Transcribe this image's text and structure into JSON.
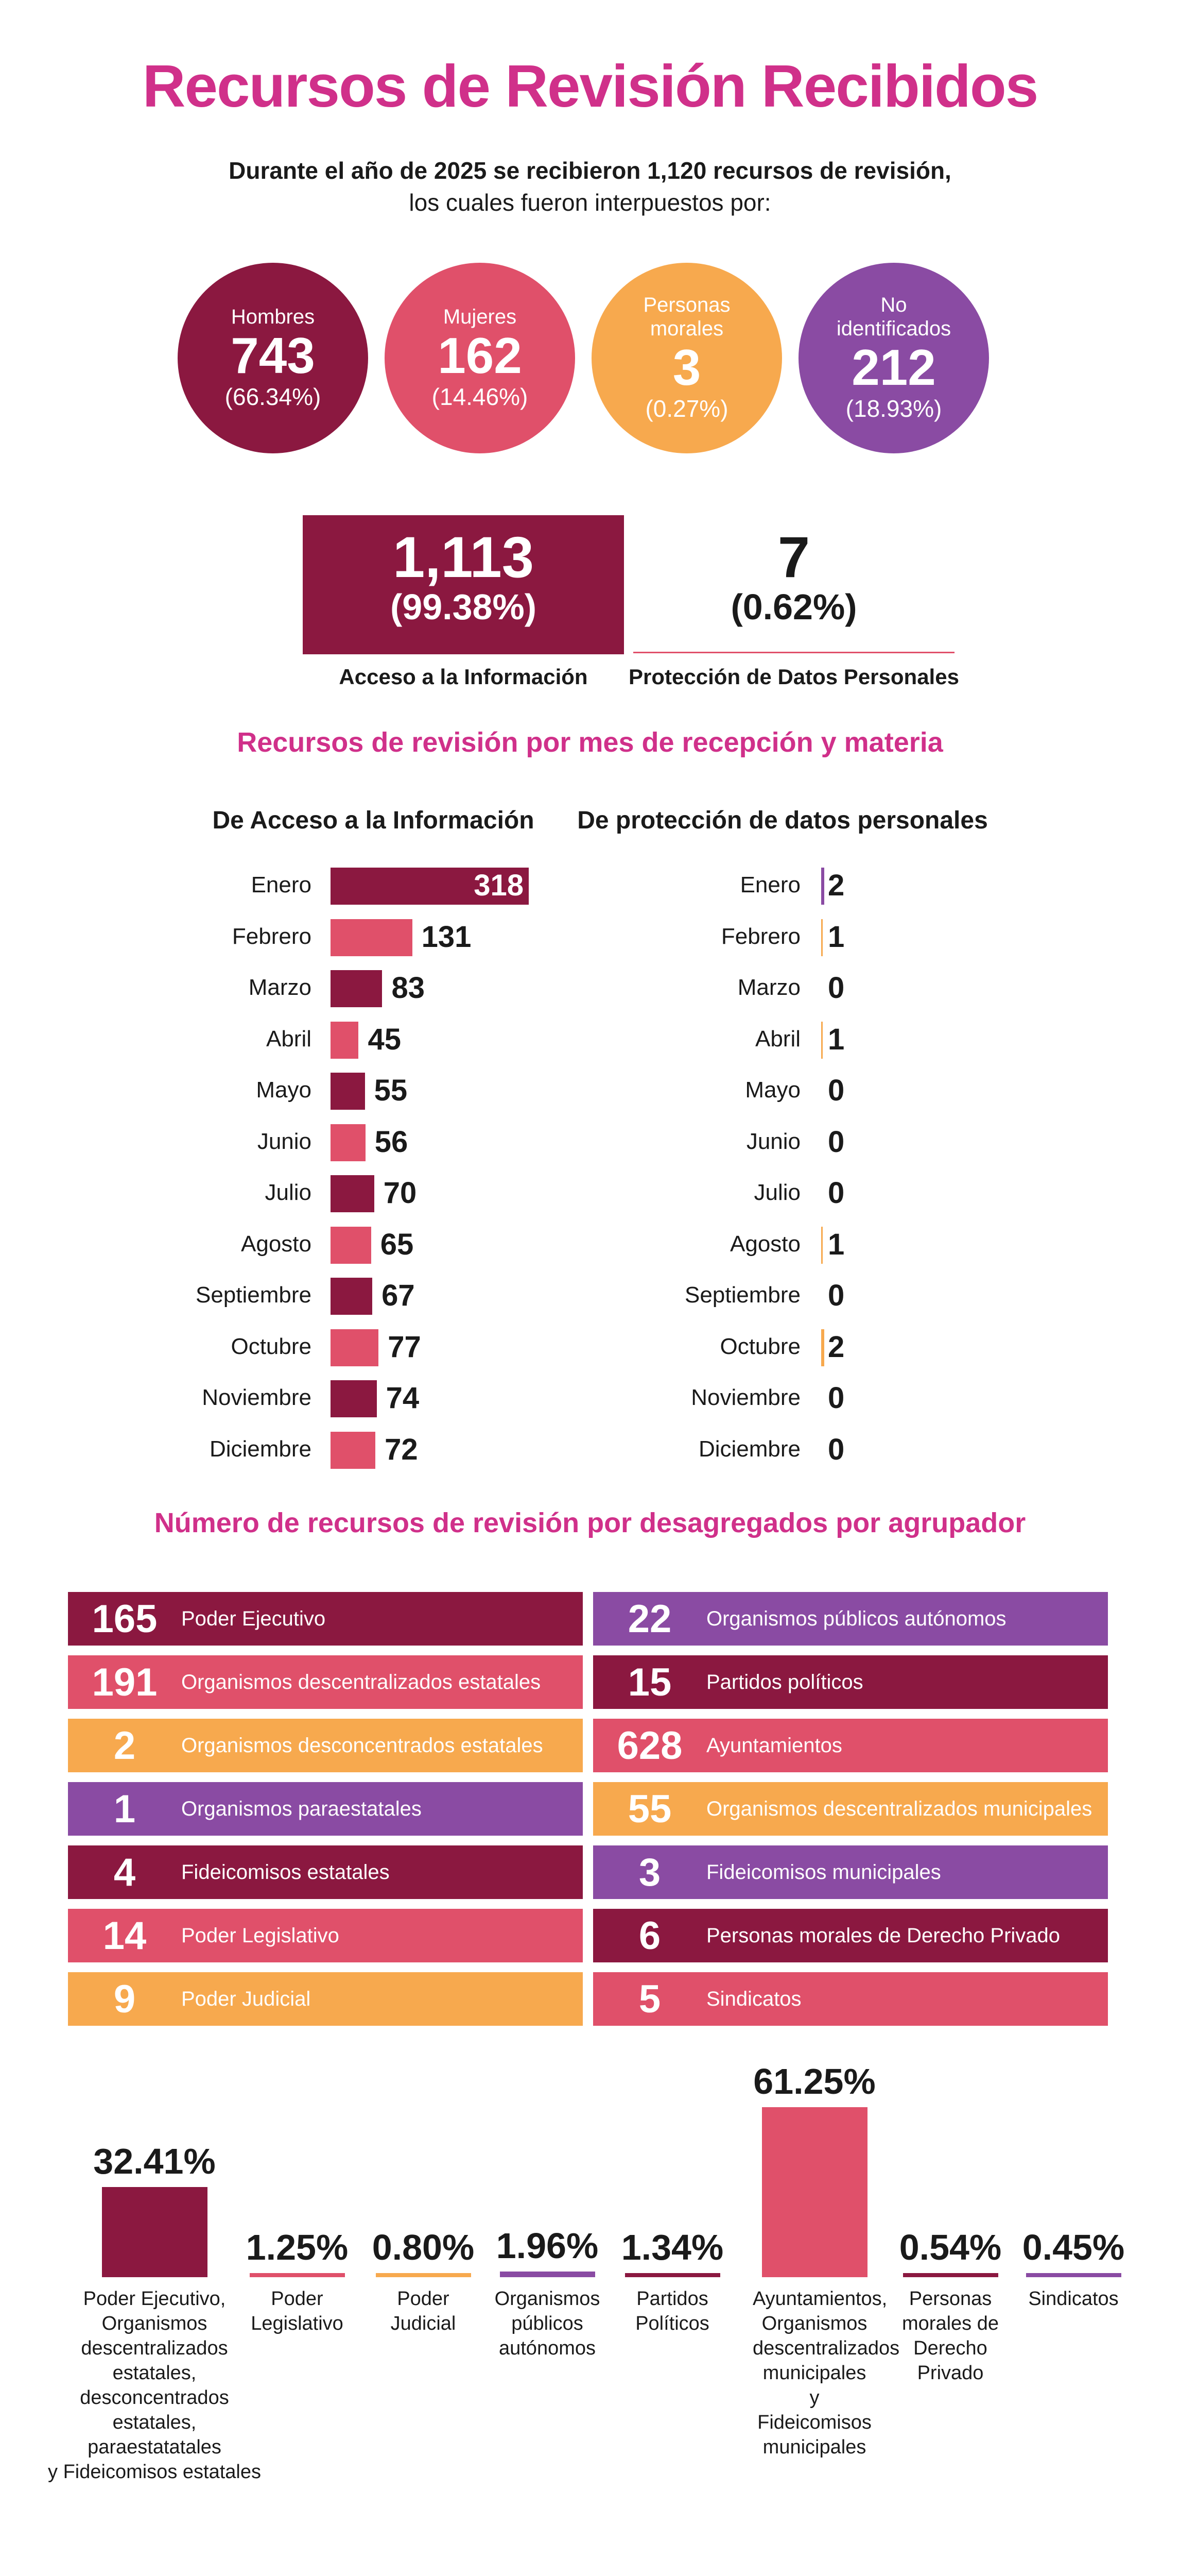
{
  "title": "Recursos de Revisión Recibidos",
  "intro": {
    "line1": "Durante el año de 2025 se recibieron 1,120 recursos de revisión,",
    "line2": "los cuales fueron interpuestos por:"
  },
  "colors": {
    "maroon": "#8b1840",
    "red": "#e0506a",
    "orange": "#f7a94e",
    "purple": "#8a4ba3",
    "pink_title": "#d0308a"
  },
  "circles": [
    {
      "label": "Hombres",
      "value": "743",
      "pct": "(66.34%)",
      "color": "#8b1840"
    },
    {
      "label": "Mujeres",
      "value": "162",
      "pct": "(14.46%)",
      "color": "#e0506a"
    },
    {
      "label": "Personas morales",
      "value": "3",
      "pct": "(0.27%)",
      "color": "#f7a94e"
    },
    {
      "label": "No identificados",
      "value": "212",
      "pct": "(18.93%)",
      "color": "#8a4ba3"
    }
  ],
  "materia": {
    "acceso": {
      "value": "1,113",
      "pct": "(99.38%)",
      "label": "Acceso a la Información"
    },
    "datos": {
      "value": "7",
      "pct": "(0.62%)",
      "label": "Protección de Datos Personales"
    }
  },
  "monthly_section": {
    "title": "Recursos de revisión por mes de recepción y materia",
    "col_acceso": "De Acceso a la Información",
    "col_datos": "De protección de datos personales"
  },
  "agrupador_section": {
    "title": "Número de recursos de revisión por desagregados por agrupador",
    "left": [
      {
        "value": "165",
        "label": "Poder Ejecutivo",
        "color": "#8b1840"
      },
      {
        "value": "191",
        "label": "Organismos descentralizados estatales",
        "color": "#e0506a"
      },
      {
        "value": "2",
        "label": "Organismos desconcentrados estatales",
        "color": "#f7a94e"
      },
      {
        "value": "1",
        "label": "Organismos paraestatales",
        "color": "#8a4ba3"
      },
      {
        "value": "4",
        "label": "Fideicomisos estatales",
        "color": "#8b1840"
      },
      {
        "value": "14",
        "label": "Poder Legislativo",
        "color": "#e0506a"
      },
      {
        "value": "9",
        "label": "Poder Judicial",
        "color": "#f7a94e"
      }
    ],
    "right": [
      {
        "value": "22",
        "label": "Organismos públicos autónomos",
        "color": "#8a4ba3"
      },
      {
        "value": "15",
        "label": "Partidos políticos",
        "color": "#8b1840"
      },
      {
        "value": "628",
        "label": "Ayuntamientos",
        "color": "#e0506a"
      },
      {
        "value": "55",
        "label": "Organismos descentralizados municipales",
        "color": "#f7a94e"
      },
      {
        "value": "3",
        "label": "Fideicomisos municipales",
        "color": "#8a4ba3"
      },
      {
        "value": "6",
        "label": "Personas morales de Derecho Privado",
        "color": "#8b1840"
      },
      {
        "value": "5",
        "label": "Sindicatos",
        "color": "#e0506a"
      }
    ]
  },
  "chart_data": [
    {
      "type": "bar",
      "title": "De Acceso a la Información",
      "orientation": "horizontal",
      "categories": [
        "Enero",
        "Febrero",
        "Marzo",
        "Abril",
        "Mayo",
        "Junio",
        "Julio",
        "Agosto",
        "Septiembre",
        "Octubre",
        "Noviembre",
        "Diciembre"
      ],
      "values": [
        318,
        131,
        83,
        45,
        55,
        56,
        70,
        65,
        67,
        77,
        74,
        72
      ],
      "colors": [
        "#8b1840",
        "#e0506a"
      ]
    },
    {
      "type": "bar",
      "title": "De protección de datos personales",
      "orientation": "horizontal",
      "categories": [
        "Enero",
        "Febrero",
        "Marzo",
        "Abril",
        "Mayo",
        "Junio",
        "Julio",
        "Agosto",
        "Septiembre",
        "Octubre",
        "Noviembre",
        "Diciembre"
      ],
      "values": [
        2,
        1,
        0,
        1,
        0,
        0,
        0,
        1,
        0,
        2,
        0,
        0
      ],
      "colors": [
        "#8a4ba3",
        "#f7a94e"
      ]
    },
    {
      "type": "bar",
      "title": "Porcentaje por agrupador",
      "categories": [
        "Poder Ejecutivo, Organismos descentralizados estatales, desconcentrados estatales, paraestatatales y Fideicomisos estatales",
        "Poder Legislativo",
        "Poder Judicial",
        "Organismos públicos autónomos",
        "Partidos Políticos",
        "Ayuntamientos, Organismos descentralizados municipales y Fideicomisos municipales",
        "Personas morales de Derecho Privado",
        "Sindicatos"
      ],
      "label_lines": [
        [
          "Poder Ejecutivo,",
          "Organismos",
          "descentralizados",
          "estatales,",
          "desconcentrados",
          "estatales,",
          "paraestatatales",
          "y Fideicomisos estatales"
        ],
        [
          "Poder",
          "Legislativo"
        ],
        [
          "Poder",
          "Judicial"
        ],
        [
          "Organismos",
          "públicos",
          "autónomos"
        ],
        [
          "Partidos",
          "Políticos"
        ],
        [
          "Ayuntamientos,",
          "Organismos",
          "descentralizados",
          "municipales",
          "y Fideicomisos",
          "municipales"
        ],
        [
          "Personas",
          "morales de",
          "Derecho",
          "Privado"
        ],
        [
          "Sindicatos"
        ]
      ],
      "values": [
        32.41,
        1.25,
        0.8,
        1.96,
        1.34,
        61.25,
        0.54,
        0.45
      ],
      "value_labels": [
        "32.41%",
        "1.25%",
        "0.80%",
        "1.96%",
        "1.34%",
        "61.25%",
        "0.54%",
        "0.45%"
      ],
      "colors": [
        "#8b1840",
        "#e0506a",
        "#f7a94e",
        "#8a4ba3",
        "#8b1840",
        "#e0506a",
        "#8b1840",
        "#8a4ba3"
      ],
      "ylim": [
        0,
        61.25
      ]
    }
  ]
}
